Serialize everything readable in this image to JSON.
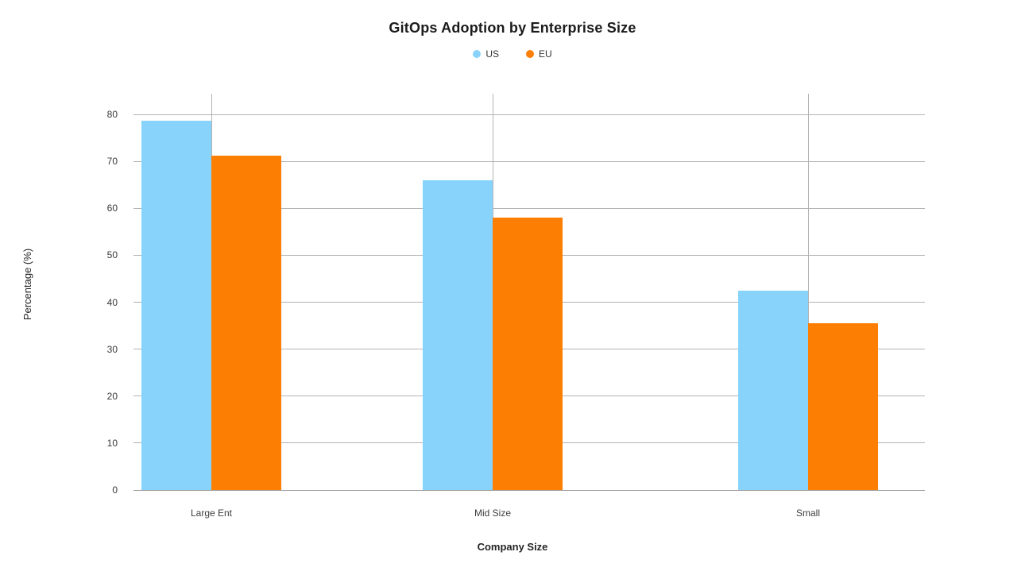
{
  "title": "GitOps Adoption by Enterprise Size",
  "chart_data": {
    "type": "bar",
    "title": "GitOps Adoption by Enterprise Size",
    "categories": [
      "Large Ent",
      "Mid Size",
      "Small"
    ],
    "series": [
      {
        "name": "US",
        "color": "#87d3fb",
        "values": [
          78.7,
          66.0,
          42.5
        ]
      },
      {
        "name": "EU",
        "color": "#fc7e02",
        "values": [
          71.2,
          58.0,
          35.5
        ]
      }
    ],
    "xlabel": "Company Size",
    "ylabel": "Percentage (%)",
    "ylim": [
      0,
      80
    ],
    "yticks": [
      0,
      10,
      20,
      30,
      40,
      50,
      60,
      70,
      80
    ],
    "grid": true,
    "legend_position": "top"
  },
  "colors": {
    "grid": "#b3b3b3",
    "baseline": "#9e9e9e",
    "title_text": "#1b1b1b",
    "axis_text": "#383838",
    "series_us": "#87d3fb",
    "series_eu": "#fc7e02",
    "background": "#ffffff"
  }
}
